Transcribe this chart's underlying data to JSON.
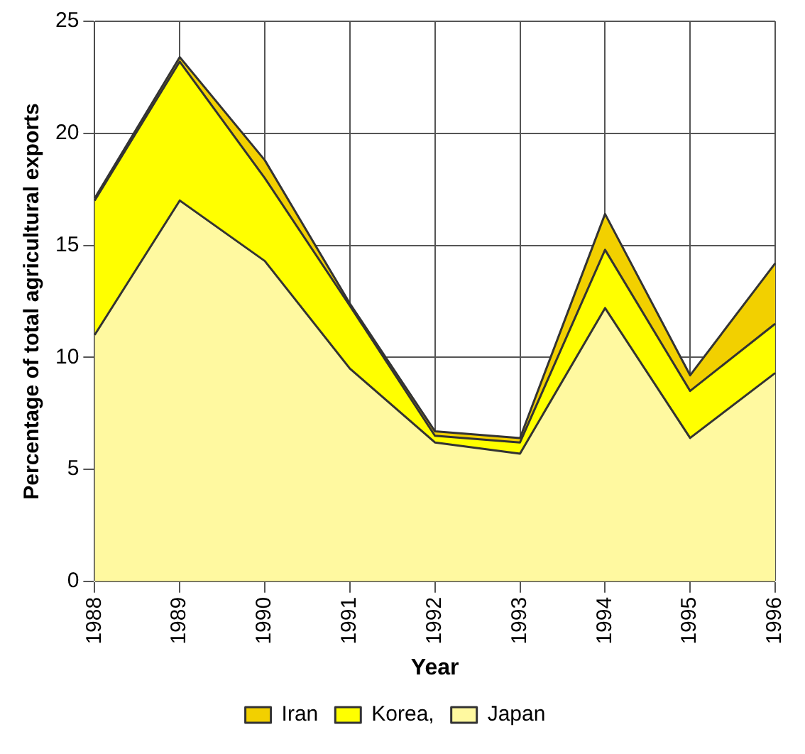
{
  "chart_data": {
    "type": "area",
    "stacked": true,
    "xlabel": "Year",
    "ylabel": "Percentage of total agricultural exports",
    "categories": [
      "1988",
      "1989",
      "1990",
      "1991",
      "1992",
      "1993",
      "1994",
      "1995",
      "1996"
    ],
    "series": [
      {
        "name": "Japan",
        "color": "#fff9a0",
        "values": [
          11,
          17,
          14.3,
          9.5,
          6.2,
          5.7,
          12.2,
          6.4,
          9.3
        ]
      },
      {
        "name": "Korea,",
        "color": "#ffff00",
        "values": [
          6,
          6.2,
          3.7,
          2.8,
          0.3,
          0.5,
          2.6,
          2.1,
          2.2
        ]
      },
      {
        "name": "Iran",
        "color": "#f2d000",
        "values": [
          0.1,
          0.2,
          0.8,
          0.1,
          0.2,
          0.2,
          1.6,
          0.7,
          2.7
        ]
      }
    ],
    "ylim": [
      0,
      25
    ],
    "yticks": [
      0,
      5,
      10,
      15,
      20,
      25
    ],
    "grid": true,
    "legend": "bottom"
  }
}
